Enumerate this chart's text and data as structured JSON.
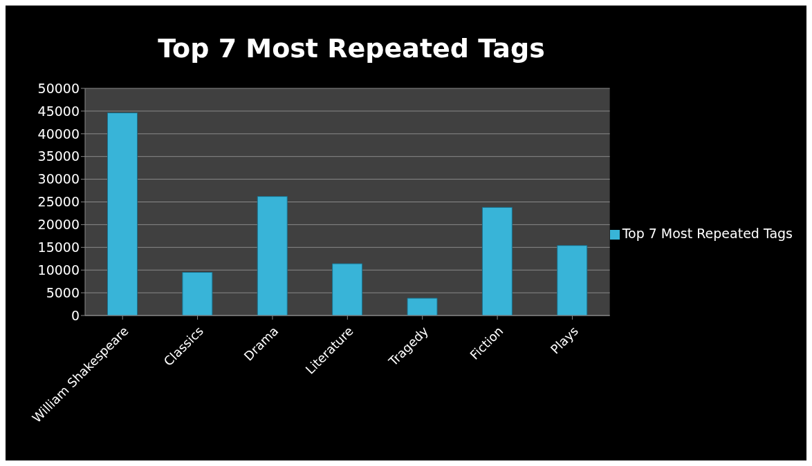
{
  "chart_data": {
    "type": "bar",
    "title": "Top 7 Most Repeated Tags",
    "categories": [
      "William Shakespeare",
      "Classics",
      "Drama",
      "Literature",
      "Tragedy",
      "Fiction",
      "Plays"
    ],
    "series": [
      {
        "name": "Top 7 Most Repeated Tags",
        "color": "#38b4d8",
        "values": [
          44600,
          9500,
          26200,
          11400,
          3800,
          23800,
          15400
        ]
      }
    ],
    "ylim": [
      0,
      50000
    ],
    "yticks": [
      0,
      5000,
      10000,
      15000,
      20000,
      25000,
      30000,
      35000,
      40000,
      45000,
      50000
    ],
    "grid": "y",
    "legend": "right"
  }
}
